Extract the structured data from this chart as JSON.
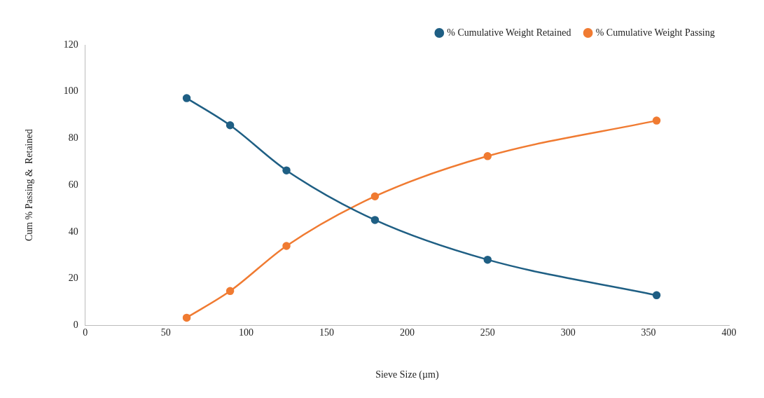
{
  "chart_data": {
    "type": "line",
    "xlabel": "Sieve Size (µm)",
    "ylabel": "Cum % Passing &  Retained",
    "x": [
      63,
      90,
      125,
      180,
      250,
      355
    ],
    "series": [
      {
        "name": "% Cumulative Weight Retained",
        "color": "#1f5f84",
        "values": [
          97.2,
          85.6,
          66.3,
          45.1,
          28.1,
          12.9
        ]
      },
      {
        "name": "% Cumulative Weight Passing",
        "color": "#f07b32",
        "values": [
          3.3,
          14.7,
          34.0,
          55.2,
          72.4,
          87.6
        ]
      }
    ],
    "xlim": [
      0,
      400
    ],
    "xticks": [
      0,
      50,
      100,
      150,
      200,
      250,
      300,
      350,
      400
    ],
    "ylim": [
      0,
      120
    ],
    "yticks": [
      0,
      20,
      40,
      60,
      80,
      100,
      120
    ],
    "grid": false,
    "legend": "top right",
    "marker": "circle",
    "line_style": "solid"
  }
}
